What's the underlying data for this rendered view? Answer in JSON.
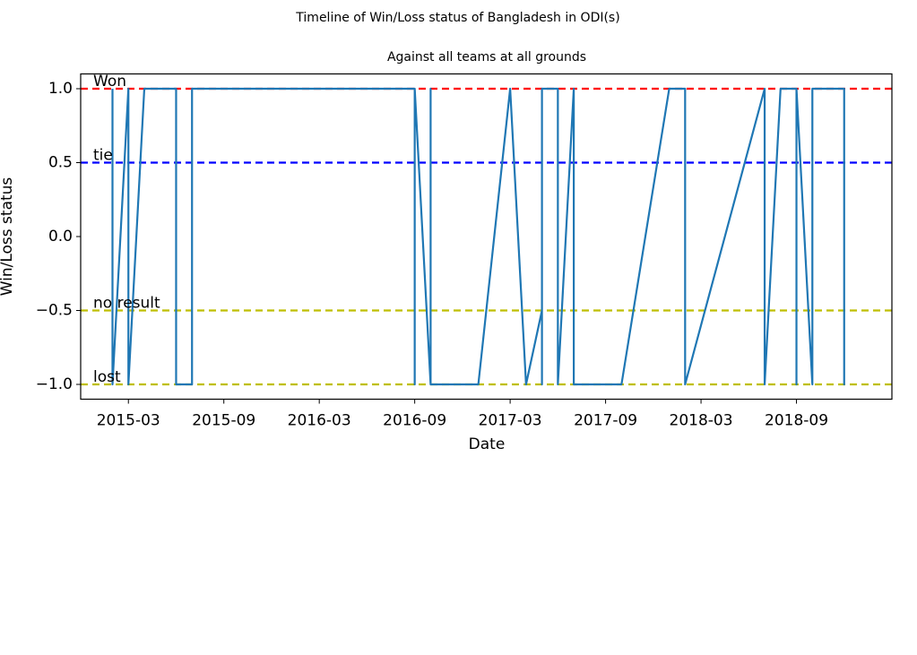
{
  "chart_data": {
    "type": "line",
    "title": "Timeline of Win/Loss status of Bangladesh in ODI(s)",
    "subtitle": "Against all teams at all grounds",
    "xlabel": "Date",
    "ylabel": "Win/Loss status",
    "x": [
      "2015-02",
      "2015-02",
      "2015-03",
      "2015-03",
      "2015-03",
      "2015-03",
      "2015-03",
      "2015-04",
      "2015-06",
      "2015-06",
      "2015-07",
      "2015-07",
      "2016-09",
      "2016-09",
      "2016-09",
      "2016-10",
      "2016-10",
      "2016-10",
      "2017-01",
      "2017-03",
      "2017-04",
      "2017-05",
      "2017-05",
      "2017-05",
      "2017-05",
      "2017-06",
      "2017-06",
      "2017-07",
      "2017-07",
      "2017-10",
      "2018-01",
      "2018-02",
      "2018-02",
      "2018-07",
      "2018-07",
      "2018-08",
      "2018-09",
      "2018-09",
      "2018-09",
      "2018-10",
      "2018-10",
      "2018-12",
      "2018-12",
      "2018-12",
      "2018-12",
      "2018-12"
    ],
    "values": [
      1,
      -1,
      1,
      -1,
      1,
      -1,
      -1,
      1,
      1,
      -1,
      -1,
      1,
      1,
      -1,
      1,
      -1,
      1,
      -1,
      -1,
      1,
      -1,
      -0.5,
      1,
      -1,
      1,
      1,
      -1,
      1,
      -1,
      -1,
      1,
      1,
      -1,
      1,
      -1,
      1,
      1,
      -1,
      1,
      -1,
      1,
      1,
      -1,
      1,
      -1,
      1
    ],
    "color": "#1f77b4",
    "xlim": [
      "2014-12",
      "2019-03"
    ],
    "xticks": [
      "2015-03",
      "2015-09",
      "2016-03",
      "2016-09",
      "2017-03",
      "2017-09",
      "2018-03",
      "2018-09"
    ],
    "ylim": [
      -1.1,
      1.1
    ],
    "yticks": [
      {
        "value": -1,
        "label": "−1.0"
      },
      {
        "value": -0.5,
        "label": "−0.5"
      },
      {
        "value": 0,
        "label": "0.0"
      },
      0.5,
      {
        "value": 1,
        "label": "1.0"
      }
    ],
    "reference_lines": [
      {
        "value": 1,
        "label": "Won",
        "color": "#ff0000"
      },
      {
        "value": 0.5,
        "label": "tie",
        "color": "#0000ff"
      },
      {
        "value": -0.5,
        "label": "no result",
        "color": "#bfbf00"
      },
      {
        "value": -1,
        "label": "lost",
        "color": "#bfbf00"
      }
    ]
  }
}
